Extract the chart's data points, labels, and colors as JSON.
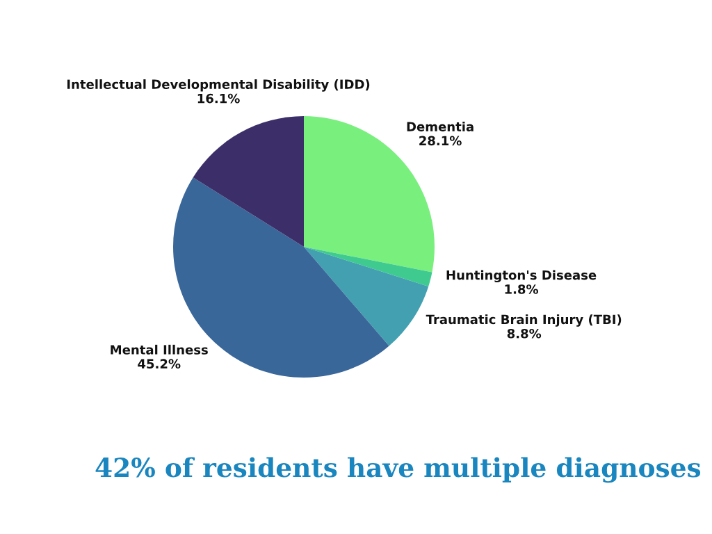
{
  "chart_data": {
    "type": "pie",
    "categories": [
      "Dementia",
      "Huntington's Disease",
      "Traumatic Brain Injury (TBI)",
      "Mental Illness",
      "Intellectual Developmental Disability (IDD)"
    ],
    "values": [
      28.1,
      1.8,
      8.8,
      45.2,
      16.1
    ],
    "value_labels": [
      "28.1%",
      "1.8%",
      "8.8%",
      "45.2%",
      "16.1%"
    ],
    "colors": [
      "#79ef7e",
      "#3fcb8f",
      "#42a0b0",
      "#39679a",
      "#3c2f69"
    ],
    "annotations": [
      "42% of residents have multiple diagnoses"
    ]
  }
}
